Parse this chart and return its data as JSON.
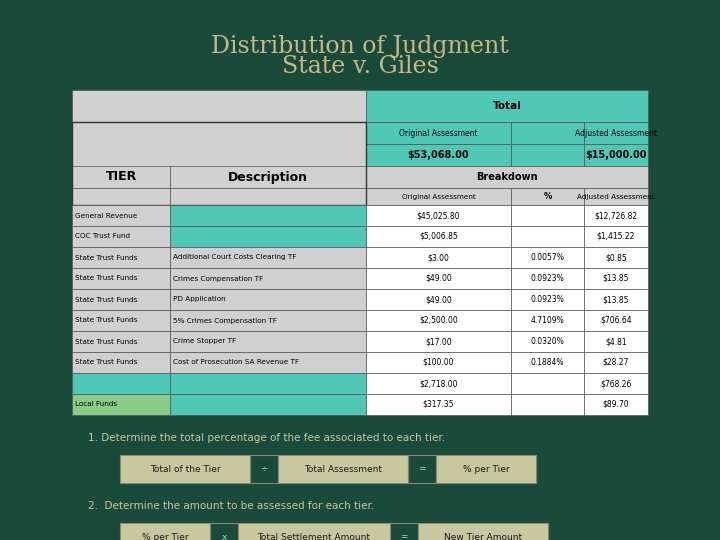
{
  "title_line1": "Distribution of Judgment",
  "title_line2": "State v. Giles",
  "title_color": "#c8b888",
  "bg_color": "#1a4a3a",
  "cyan": "#50c8b8",
  "lgray": "#d0d0d0",
  "white": "#ffffff",
  "green_light": "#88cc88",
  "rows": [
    {
      "tier": "General Revenue",
      "desc": "",
      "orig": "$45,025.80",
      "pct": "",
      "adj": "$12,726.82",
      "tier_bg": "#d0d0d0",
      "desc_bg": "#50c8b8"
    },
    {
      "tier": "COC Trust Fund",
      "desc": "",
      "orig": "$5,006.85",
      "pct": "",
      "adj": "$1,415.22",
      "tier_bg": "#d0d0d0",
      "desc_bg": "#50c8b8"
    },
    {
      "tier": "State Trust Funds",
      "desc": "Additional Court Costs Clearing TF",
      "orig": "$3.00",
      "pct": "0.0057%",
      "adj": "$0.85",
      "tier_bg": "#d0d0d0",
      "desc_bg": "#d0d0d0"
    },
    {
      "tier": "State Trust Funds",
      "desc": "Crimes Compensation TF",
      "orig": "$49.00",
      "pct": "0.0923%",
      "adj": "$13.85",
      "tier_bg": "#d0d0d0",
      "desc_bg": "#d0d0d0"
    },
    {
      "tier": "State Trust Funds",
      "desc": "PD Application",
      "orig": "$49.00",
      "pct": "0.0923%",
      "adj": "$13.85",
      "tier_bg": "#d0d0d0",
      "desc_bg": "#d0d0d0"
    },
    {
      "tier": "State Trust Funds",
      "desc": "5% Crimes Compensation TF",
      "orig": "$2,500.00",
      "pct": "4.7109%",
      "adj": "$706.64",
      "tier_bg": "#d0d0d0",
      "desc_bg": "#d0d0d0"
    },
    {
      "tier": "State Trust Funds",
      "desc": "Crime Stopper TF",
      "orig": "$17.00",
      "pct": "0.0320%",
      "adj": "$4.81",
      "tier_bg": "#d0d0d0",
      "desc_bg": "#d0d0d0"
    },
    {
      "tier": "State Trust Funds",
      "desc": "Cost of Prosecution SA Revenue TF",
      "orig": "$100.00",
      "pct": "0.1884%",
      "adj": "$28.27",
      "tier_bg": "#d0d0d0",
      "desc_bg": "#d0d0d0"
    },
    {
      "tier": "",
      "desc": "",
      "orig": "$2,718.00",
      "pct": "",
      "adj": "$768.26",
      "tier_bg": "#50c8b8",
      "desc_bg": "#50c8b8"
    },
    {
      "tier": "Local Funds",
      "desc": "",
      "orig": "$317.35",
      "pct": "",
      "adj": "$89.70",
      "tier_bg": "#88cc88",
      "desc_bg": "#50c8b8"
    }
  ],
  "note1": "1. Determine the total percentage of the fee associated to each tier.",
  "note2": "2.  Determine the amount to be assessed for each tier.",
  "formula1": [
    "Total of the Tier",
    "÷",
    "Total Assessment",
    "=",
    "% per Tier"
  ],
  "formula2": [
    "% per Tier",
    "x",
    "Total Settlement Amount",
    "=",
    "New Tier Amount"
  ],
  "formula_bg": "#c8c8a0",
  "note_color": "#c8c8a0"
}
